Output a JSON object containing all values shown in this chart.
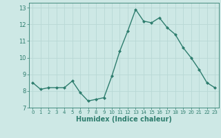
{
  "x": [
    0,
    1,
    2,
    3,
    4,
    5,
    6,
    7,
    8,
    9,
    10,
    11,
    12,
    13,
    14,
    15,
    16,
    17,
    18,
    19,
    20,
    21,
    22,
    23
  ],
  "y": [
    8.5,
    8.1,
    8.2,
    8.2,
    8.2,
    8.6,
    7.9,
    7.4,
    7.5,
    7.6,
    8.9,
    10.4,
    11.6,
    12.9,
    12.2,
    12.1,
    12.4,
    11.8,
    11.4,
    10.6,
    10.0,
    9.3,
    8.5,
    8.2
  ],
  "line_color": "#2e7d6e",
  "marker": "D",
  "marker_size": 2.0,
  "linewidth": 1.0,
  "bg_color": "#cde8e5",
  "grid_color": "#b8d8d5",
  "xlabel": "Humidex (Indice chaleur)",
  "xlabel_fontsize": 7,
  "tick_color": "#2e7d6e",
  "xlim": [
    -0.5,
    23.5
  ],
  "ylim": [
    7,
    13.3
  ],
  "yticks": [
    7,
    8,
    9,
    10,
    11,
    12,
    13
  ],
  "xticks": [
    0,
    1,
    2,
    3,
    4,
    5,
    6,
    7,
    8,
    9,
    10,
    11,
    12,
    13,
    14,
    15,
    16,
    17,
    18,
    19,
    20,
    21,
    22,
    23
  ],
  "xtick_fontsize": 5.0,
  "ytick_fontsize": 6.0
}
